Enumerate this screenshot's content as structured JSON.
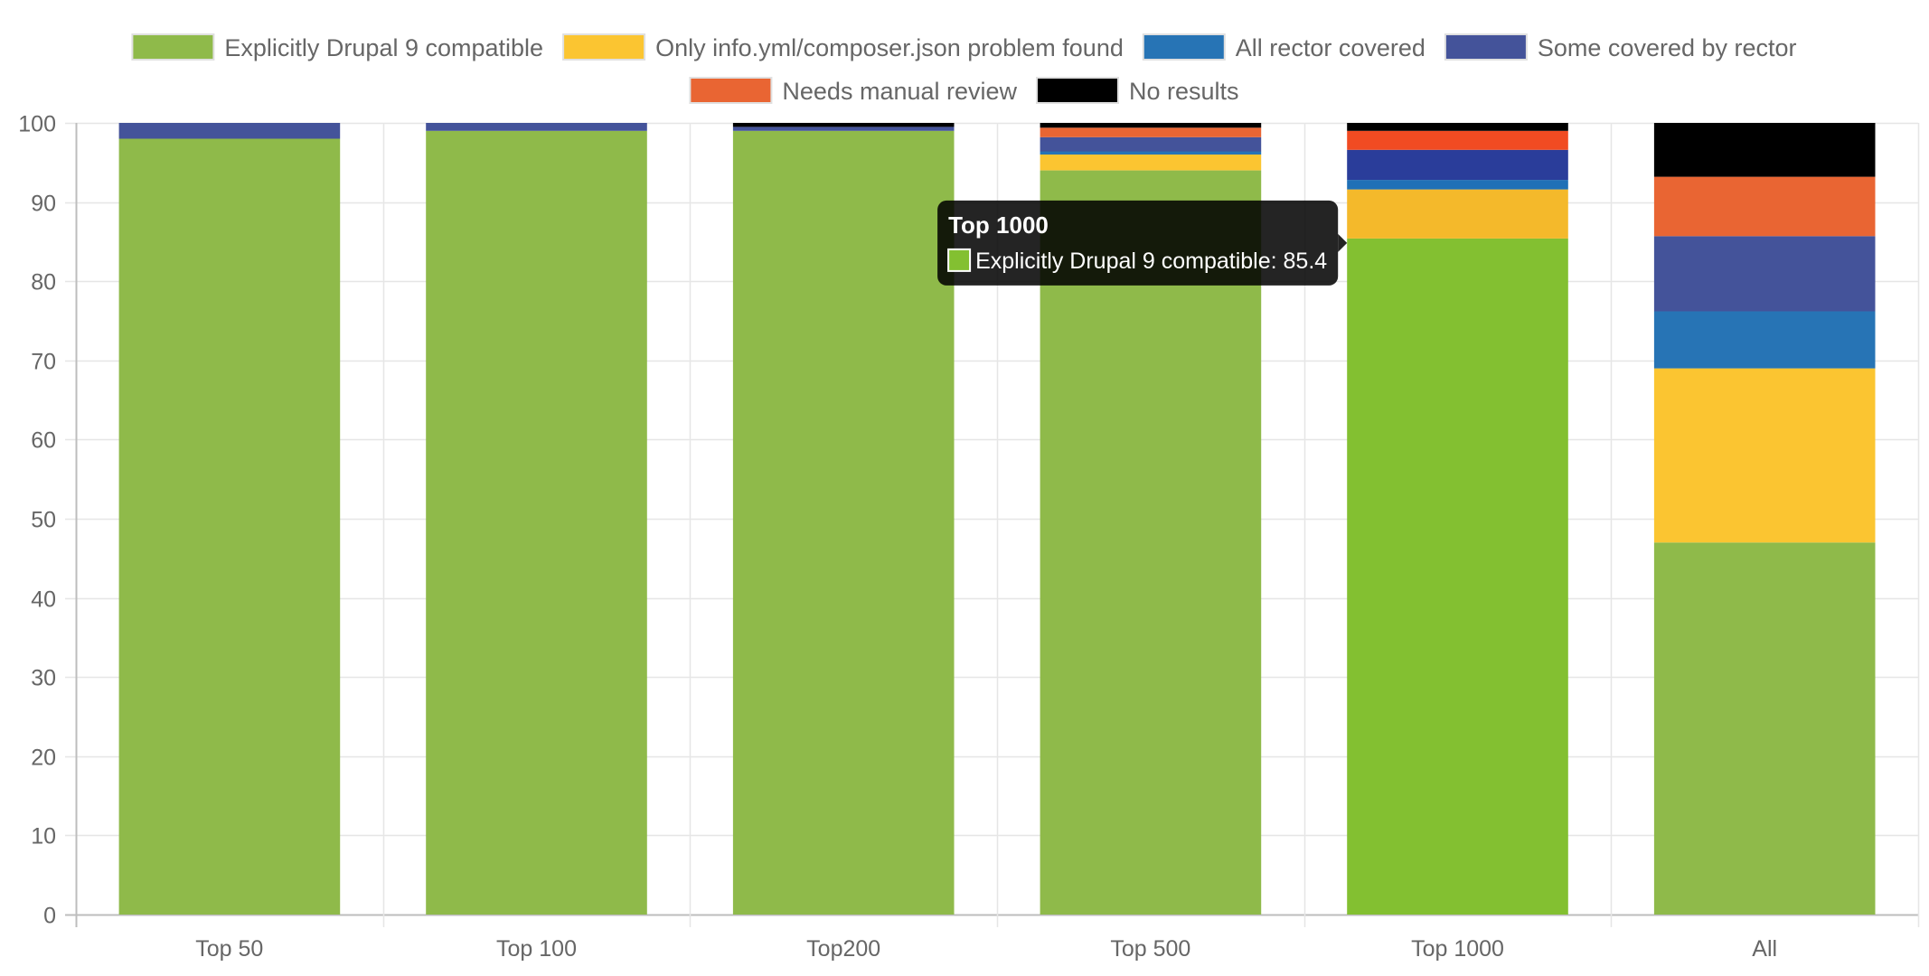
{
  "chart_data": {
    "type": "bar",
    "stacked": true,
    "title": "",
    "xlabel": "",
    "ylabel": "",
    "ylim": [
      0,
      100
    ],
    "yticks": [
      0,
      10,
      20,
      30,
      40,
      50,
      60,
      70,
      80,
      90,
      100
    ],
    "grid": true,
    "legend_position": "top",
    "categories": [
      "Top 50",
      "Top 100",
      "Top200",
      "Top 500",
      "Top 1000",
      "All"
    ],
    "series": [
      {
        "name": "Explicitly Drupal 9 compatible",
        "color": "#8FBA4A",
        "values": [
          98.0,
          99.0,
          99.0,
          94.0,
          85.4,
          47.0
        ]
      },
      {
        "name": "Only info.yml/composer.json problem found",
        "color": "#FBC531",
        "values": [
          0.0,
          0.0,
          0.0,
          2.0,
          6.2,
          22.0
        ]
      },
      {
        "name": "All rector covered",
        "color": "#2774B5",
        "values": [
          0.0,
          0.0,
          0.0,
          0.4,
          1.2,
          7.2
        ]
      },
      {
        "name": "Some covered by rector",
        "color": "#44539A",
        "values": [
          2.0,
          1.0,
          0.5,
          1.8,
          3.8,
          9.5
        ]
      },
      {
        "name": "Needs manual review",
        "color": "#E96533",
        "values": [
          0.0,
          0.0,
          0.0,
          1.2,
          2.4,
          7.5
        ]
      },
      {
        "name": "No results",
        "color": "#000000",
        "values": [
          0.0,
          0.0,
          0.5,
          0.6,
          1.0,
          6.8
        ]
      }
    ],
    "active_category": "Top 1000",
    "active_color_overrides": [
      "#83C031",
      "#F4B92B",
      "#1F70B6",
      "#2A3D9A",
      "#F14B22",
      "#000000"
    ],
    "tooltip": {
      "title": "Top 1000",
      "series_name": "Explicitly Drupal 9 compatible",
      "label": "Explicitly Drupal 9 compatible: 85.4",
      "swatch_color": "#83C031"
    }
  }
}
